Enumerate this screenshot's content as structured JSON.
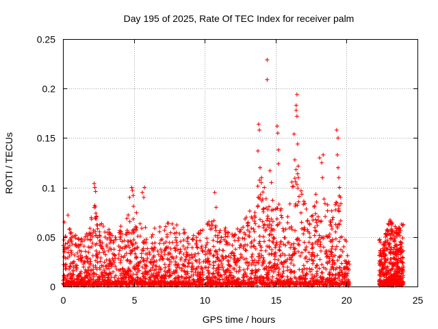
{
  "chart_data": {
    "type": "scatter",
    "title": "Day 195 of 2025, Rate Of TEC Index for receiver palm",
    "xlabel": "GPS time / hours",
    "ylabel": "ROTI / TECUs",
    "xlim": [
      0,
      25
    ],
    "ylim": [
      0,
      0.25
    ],
    "xticks": [
      0,
      5,
      10,
      15,
      20,
      25
    ],
    "yticks": [
      0,
      0.05,
      0.1,
      0.15,
      0.2,
      0.25
    ],
    "xtick_labels": [
      "0",
      "5",
      "10",
      "15",
      "20",
      "25"
    ],
    "ytick_labels": [
      "0",
      "0.05",
      "0.1",
      "0.15",
      "0.2",
      "0.25"
    ],
    "grid": true,
    "marker": "+",
    "series": [
      {
        "name": "ROTI",
        "color": "#ff0000",
        "envelope": {
          "x": [
            0,
            0.3,
            0.5,
            1.0,
            1.5,
            2.2,
            2.6,
            3.5,
            4.5,
            5.0,
            5.5,
            6.5,
            7.5,
            8.5,
            9.5,
            10.5,
            11.0,
            11.5,
            12.5,
            13.5,
            14.0,
            14.5,
            15.0,
            15.5,
            16.0,
            16.5,
            17.0,
            17.5,
            18.0,
            18.5,
            19.0,
            19.5,
            20.0,
            20.2
          ],
          "y": [
            0.045,
            0.07,
            0.06,
            0.05,
            0.05,
            0.09,
            0.065,
            0.055,
            0.07,
            0.085,
            0.065,
            0.06,
            0.065,
            0.06,
            0.055,
            0.07,
            0.06,
            0.06,
            0.06,
            0.085,
            0.12,
            0.09,
            0.085,
            0.09,
            0.12,
            0.13,
            0.09,
            0.08,
            0.1,
            0.09,
            0.075,
            0.1,
            0.045,
            0.03
          ]
        },
        "envelope2": {
          "x": [
            22.3,
            22.6,
            23.0,
            23.3,
            23.6,
            24.0
          ],
          "y": [
            0.05,
            0.045,
            0.07,
            0.065,
            0.06,
            0.065
          ]
        },
        "outliers": [
          {
            "x": 0.1,
            "y": 0.065
          },
          {
            "x": 0.35,
            "y": 0.072
          },
          {
            "x": 2.2,
            "y": 0.104
          },
          {
            "x": 2.25,
            "y": 0.1
          },
          {
            "x": 2.3,
            "y": 0.096
          },
          {
            "x": 2.2,
            "y": 0.08
          },
          {
            "x": 4.7,
            "y": 0.09
          },
          {
            "x": 4.85,
            "y": 0.1
          },
          {
            "x": 4.9,
            "y": 0.097
          },
          {
            "x": 4.95,
            "y": 0.092
          },
          {
            "x": 5.6,
            "y": 0.095
          },
          {
            "x": 5.7,
            "y": 0.09
          },
          {
            "x": 5.75,
            "y": 0.1
          },
          {
            "x": 10.7,
            "y": 0.095
          },
          {
            "x": 10.8,
            "y": 0.08
          },
          {
            "x": 13.8,
            "y": 0.164
          },
          {
            "x": 13.85,
            "y": 0.158
          },
          {
            "x": 13.75,
            "y": 0.137
          },
          {
            "x": 13.9,
            "y": 0.12
          },
          {
            "x": 14.0,
            "y": 0.11
          },
          {
            "x": 14.2,
            "y": 0.1
          },
          {
            "x": 14.4,
            "y": 0.229
          },
          {
            "x": 14.4,
            "y": 0.209
          },
          {
            "x": 14.6,
            "y": 0.117
          },
          {
            "x": 14.7,
            "y": 0.105
          },
          {
            "x": 15.1,
            "y": 0.162
          },
          {
            "x": 15.15,
            "y": 0.155
          },
          {
            "x": 15.2,
            "y": 0.138
          },
          {
            "x": 15.2,
            "y": 0.124
          },
          {
            "x": 16.3,
            "y": 0.154
          },
          {
            "x": 16.35,
            "y": 0.128
          },
          {
            "x": 16.5,
            "y": 0.194
          },
          {
            "x": 16.45,
            "y": 0.183
          },
          {
            "x": 16.45,
            "y": 0.178
          },
          {
            "x": 16.5,
            "y": 0.172
          },
          {
            "x": 16.55,
            "y": 0.144
          },
          {
            "x": 16.6,
            "y": 0.11
          },
          {
            "x": 18.1,
            "y": 0.13
          },
          {
            "x": 18.25,
            "y": 0.125
          },
          {
            "x": 18.35,
            "y": 0.133
          },
          {
            "x": 18.3,
            "y": 0.11
          },
          {
            "x": 19.3,
            "y": 0.158
          },
          {
            "x": 19.4,
            "y": 0.15
          },
          {
            "x": 19.35,
            "y": 0.133
          },
          {
            "x": 19.4,
            "y": 0.12
          },
          {
            "x": 19.45,
            "y": 0.11
          },
          {
            "x": 19.5,
            "y": 0.1
          }
        ]
      }
    ]
  }
}
